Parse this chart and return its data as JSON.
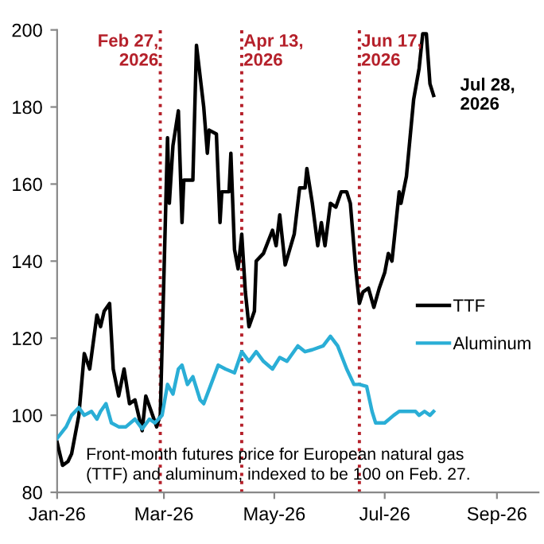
{
  "chart_data": {
    "type": "line",
    "xlim": [
      "2026-01-01",
      "2026-09-24"
    ],
    "xticks": [
      {
        "value": "2026-01-01",
        "label": "Jan-26"
      },
      {
        "value": "2026-03-01",
        "label": "Mar-26"
      },
      {
        "value": "2026-05-01",
        "label": "May-26"
      },
      {
        "value": "2026-07-01",
        "label": "Jul-26"
      },
      {
        "value": "2026-09-01",
        "label": "Sep-26"
      }
    ],
    "ylim": [
      80,
      200
    ],
    "yticks": [
      80,
      100,
      120,
      140,
      160,
      180,
      200
    ],
    "grid": false,
    "legend": "right",
    "line_style": "solid",
    "marker": "none",
    "series": [
      {
        "name": "TTF",
        "color": "#000000",
        "x": [
          "2026-01-01",
          "2026-01-04",
          "2026-01-07",
          "2026-01-09",
          "2026-01-13",
          "2026-01-16",
          "2026-01-19",
          "2026-01-23",
          "2026-01-25",
          "2026-01-27",
          "2026-01-30",
          "2026-02-01",
          "2026-02-04",
          "2026-02-07",
          "2026-02-10",
          "2026-02-13",
          "2026-02-17",
          "2026-02-19",
          "2026-02-22",
          "2026-02-25",
          "2026-02-27",
          "2026-03-03",
          "2026-03-04",
          "2026-03-06",
          "2026-03-09",
          "2026-03-11",
          "2026-03-12",
          "2026-03-17",
          "2026-03-19",
          "2026-03-23",
          "2026-03-25",
          "2026-03-26",
          "2026-03-30",
          "2026-04-01",
          "2026-04-02",
          "2026-04-06",
          "2026-04-07",
          "2026-04-09",
          "2026-04-11",
          "2026-04-13",
          "2026-04-15",
          "2026-04-17",
          "2026-04-20",
          "2026-04-21",
          "2026-04-25",
          "2026-04-30",
          "2026-05-02",
          "2026-05-04",
          "2026-05-07",
          "2026-05-12",
          "2026-05-15",
          "2026-05-18",
          "2026-05-19",
          "2026-05-22",
          "2026-05-25",
          "2026-05-27",
          "2026-05-29",
          "2026-06-01",
          "2026-06-04",
          "2026-06-07",
          "2026-06-10",
          "2026-06-12",
          "2026-06-15",
          "2026-06-17",
          "2026-06-19",
          "2026-06-22",
          "2026-06-25",
          "2026-06-28",
          "2026-07-01",
          "2026-07-03",
          "2026-07-05",
          "2026-07-09",
          "2026-07-10",
          "2026-07-13",
          "2026-07-15",
          "2026-07-17",
          "2026-07-20",
          "2026-07-22",
          "2026-07-24",
          "2026-07-26",
          "2026-07-28"
        ],
        "values": [
          93,
          87,
          88,
          90,
          100,
          116,
          112,
          126,
          123,
          127,
          129,
          112,
          105,
          112,
          103,
          104,
          96,
          105,
          101,
          97,
          100,
          172,
          155,
          170,
          179,
          150,
          161,
          161,
          196,
          180,
          168,
          174,
          173,
          150,
          158,
          158,
          168,
          143,
          138,
          147,
          132,
          123,
          127,
          140,
          142,
          148,
          144,
          152,
          139,
          147,
          159,
          159,
          164,
          155,
          144,
          150,
          144,
          155,
          154,
          158,
          158,
          155,
          138,
          129,
          132,
          133,
          128,
          133,
          137,
          142,
          140,
          158,
          155,
          162,
          172,
          182,
          190,
          199,
          199,
          186,
          183
        ]
      },
      {
        "name": "Aluminum",
        "color": "#2aaed6",
        "x": [
          "2026-01-01",
          "2026-01-06",
          "2026-01-09",
          "2026-01-13",
          "2026-01-16",
          "2026-01-20",
          "2026-01-23",
          "2026-01-25",
          "2026-01-28",
          "2026-01-31",
          "2026-02-04",
          "2026-02-08",
          "2026-02-13",
          "2026-02-17",
          "2026-02-21",
          "2026-02-24",
          "2026-02-28",
          "2026-03-03",
          "2026-03-06",
          "2026-03-09",
          "2026-03-11",
          "2026-03-14",
          "2026-03-17",
          "2026-03-21",
          "2026-03-23",
          "2026-03-27",
          "2026-03-31",
          "2026-04-04",
          "2026-04-09",
          "2026-04-13",
          "2026-04-17",
          "2026-04-21",
          "2026-04-25",
          "2026-04-30",
          "2026-05-04",
          "2026-05-08",
          "2026-05-14",
          "2026-05-18",
          "2026-05-22",
          "2026-05-28",
          "2026-06-01",
          "2026-06-05",
          "2026-06-10",
          "2026-06-14",
          "2026-06-17",
          "2026-06-21",
          "2026-06-24",
          "2026-06-26",
          "2026-07-01",
          "2026-07-06",
          "2026-07-09",
          "2026-07-13",
          "2026-07-18",
          "2026-07-20",
          "2026-07-23",
          "2026-07-26",
          "2026-07-28"
        ],
        "values": [
          94,
          97,
          100,
          102,
          100,
          101,
          99,
          101,
          103,
          98,
          97,
          97,
          99,
          96.5,
          99,
          98,
          100,
          108,
          105.5,
          112,
          113,
          108,
          110,
          104,
          103,
          108,
          113,
          112,
          111,
          116.5,
          114,
          116.5,
          114,
          112,
          115,
          114,
          118,
          116.5,
          117,
          118,
          120.5,
          118,
          112,
          108,
          108,
          107.5,
          101,
          98,
          98,
          100,
          101,
          101,
          101,
          100,
          101,
          100,
          101
        ]
      }
    ],
    "ref_lines": [
      {
        "axis": "x",
        "value": "2026-02-27",
        "label": "Feb 27,\n2026",
        "color": "#b5202a",
        "line_style": "dotted"
      },
      {
        "axis": "x",
        "value": "2026-04-13",
        "label": "Apr 13,\n2026",
        "color": "#b5202a",
        "line_style": "dotted"
      },
      {
        "axis": "x",
        "value": "2026-06-17",
        "label": "Jun 17,\n2026",
        "color": "#b5202a",
        "line_style": "dotted"
      }
    ],
    "annotations": [
      {
        "text": "Jul 28,\n2026",
        "x": "2026-07-28",
        "y": 183
      },
      "Front-month futures price for European natural gas\n(TTF) and aluminum, indexed to be 100 on Feb. 27."
    ]
  }
}
